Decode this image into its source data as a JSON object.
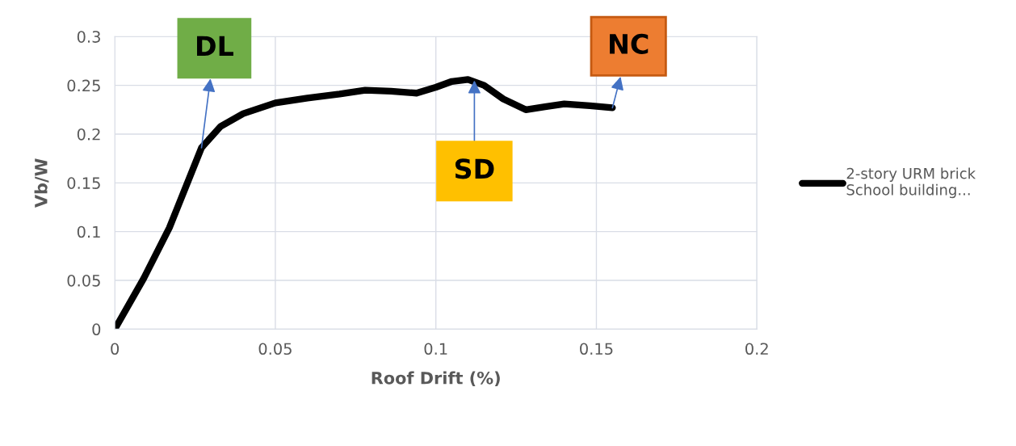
{
  "chart_data": {
    "type": "line",
    "xlabel": "Roof Drift (%)",
    "ylabel": "Vb/W",
    "x": [
      0,
      0.009,
      0.017,
      0.022,
      0.027,
      0.033,
      0.04,
      0.05,
      0.06,
      0.07,
      0.078,
      0.086,
      0.094,
      0.1,
      0.105,
      0.11,
      0.115,
      0.121,
      0.128,
      0.134,
      0.14,
      0.148,
      0.155
    ],
    "series": [
      {
        "name": "2-story URM brick School building...",
        "color": "#000000",
        "values": [
          0,
          0.052,
          0.104,
          0.145,
          0.186,
          0.208,
          0.221,
          0.232,
          0.237,
          0.241,
          0.245,
          0.244,
          0.242,
          0.248,
          0.254,
          0.256,
          0.25,
          0.236,
          0.225,
          0.228,
          0.231,
          0.229,
          0.227
        ]
      }
    ],
    "annotations": [
      {
        "text": "DL",
        "x": 0.027,
        "y": 0.186
      },
      {
        "text": "SD",
        "x": 0.112,
        "y": 0.255
      },
      {
        "text": "NC",
        "x": 0.155,
        "y": 0.227
      }
    ],
    "xlim": [
      0,
      0.2
    ],
    "xticks": [
      0,
      0.05,
      0.1,
      0.15,
      0.2
    ],
    "ylim": [
      0,
      0.3
    ],
    "yticks": [
      0,
      0.05,
      0.1,
      0.15,
      0.2,
      0.25,
      0.3
    ],
    "grid": true,
    "legend": "right",
    "line_style": "solid",
    "marker": "none"
  }
}
